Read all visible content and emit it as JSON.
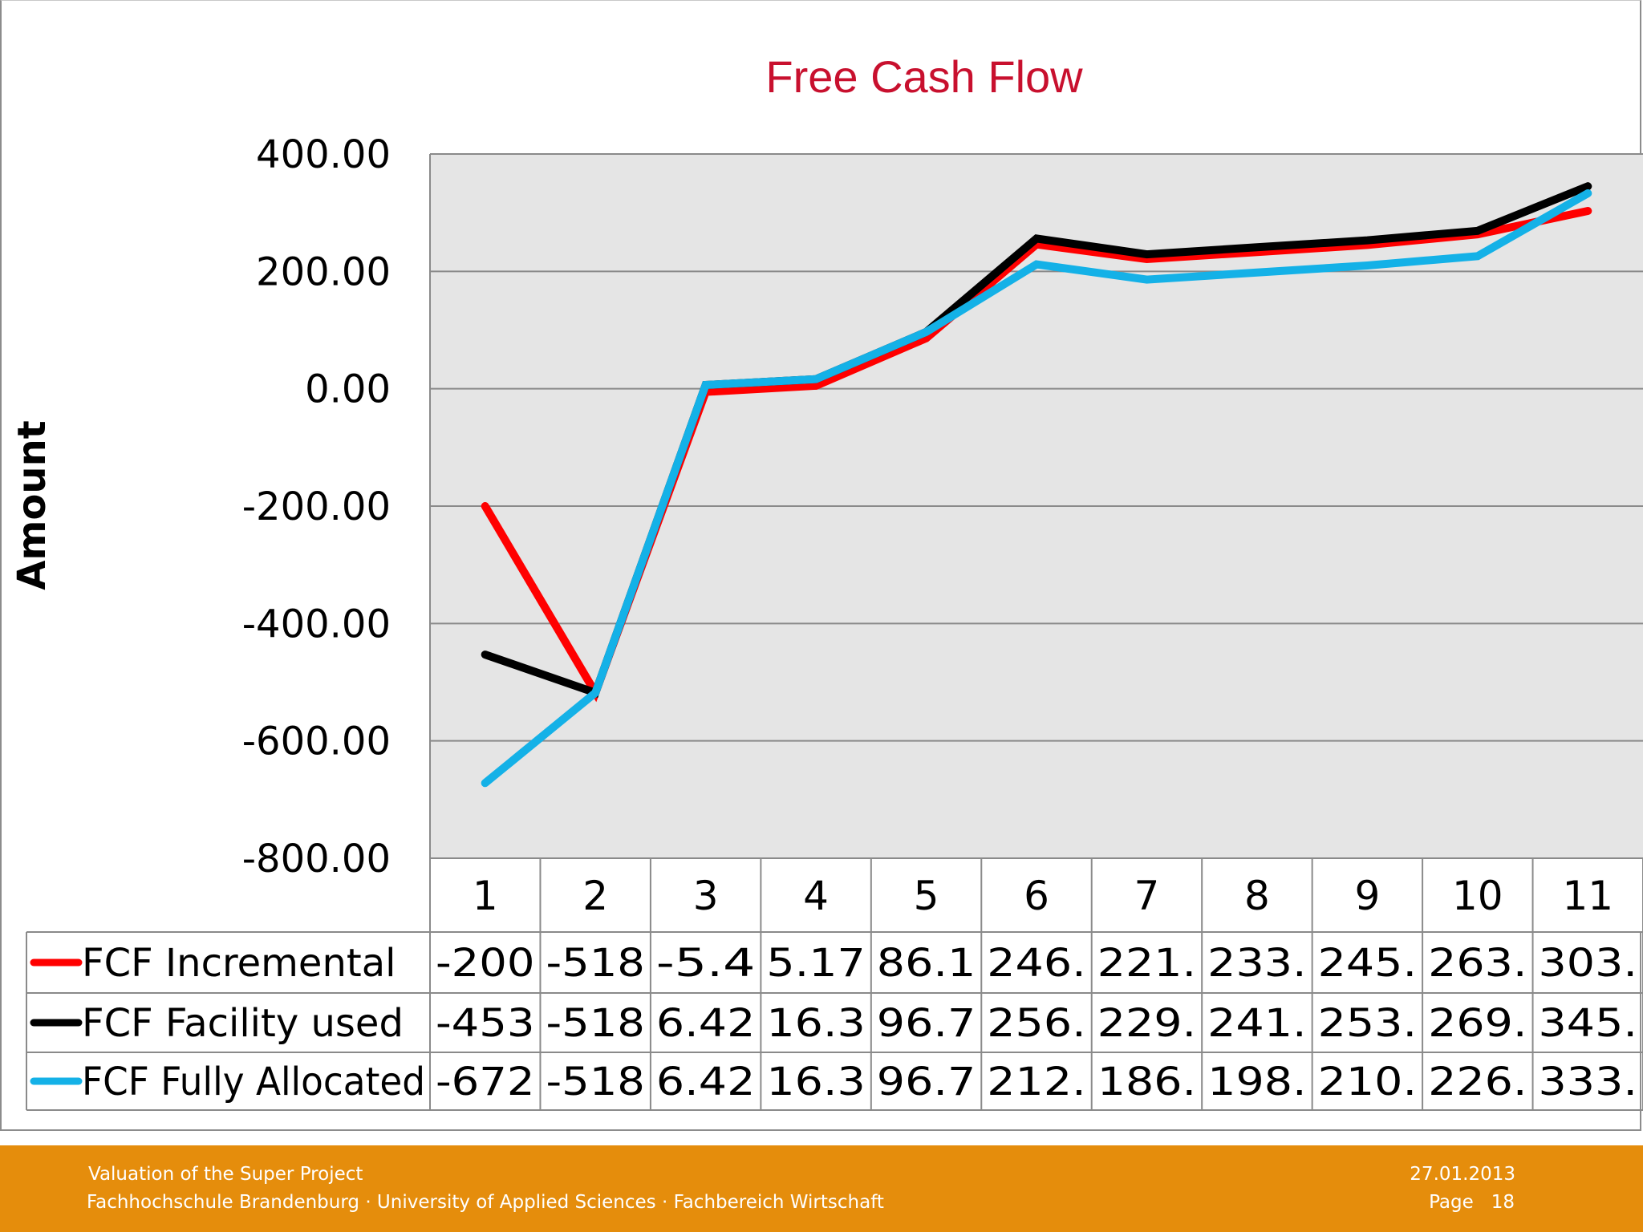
{
  "chart_data": {
    "type": "line",
    "title": "Free Cash Flow",
    "xlabel": "",
    "ylabel": "Amount",
    "ylim": [
      -800,
      400
    ],
    "yticks": [
      "400.00",
      "200.00",
      "0.00",
      "-200.00",
      "-400.00",
      "-600.00",
      "-800.00"
    ],
    "categories": [
      "1",
      "2",
      "3",
      "4",
      "5",
      "6",
      "7",
      "8",
      "9",
      "10",
      "11"
    ],
    "grid": true,
    "legend": "data-table-left",
    "series": [
      {
        "name": "FCF Incremental",
        "color": "#ff0000",
        "values": [
          -200,
          -518,
          -5.4,
          5.17,
          86.1,
          246,
          221,
          233,
          245,
          263,
          303
        ],
        "table_labels": [
          "-200",
          "-518",
          "-5.4",
          "5.17",
          "86.1",
          "246.",
          "221.",
          "233.",
          "245.",
          "263.",
          "303."
        ]
      },
      {
        "name": "FCF Facility used",
        "color": "#000000",
        "values": [
          -453,
          -518,
          6.42,
          16.3,
          96.7,
          256,
          229,
          241,
          253,
          269,
          345
        ],
        "table_labels": [
          "-453",
          "-518",
          "6.42",
          "16.3",
          "96.7",
          "256.",
          "229.",
          "241.",
          "253.",
          "269.",
          "345."
        ]
      },
      {
        "name": "FCF Fully Allocated",
        "color": "#14b1e7",
        "values": [
          -672,
          -518,
          6.42,
          16.3,
          96.7,
          212,
          186,
          198,
          210,
          226,
          333
        ],
        "table_labels": [
          "-672",
          "-518",
          "6.42",
          "16.3",
          "96.7",
          "212.",
          "186.",
          "198.",
          "210.",
          "226.",
          "333."
        ]
      }
    ]
  },
  "footer": {
    "project": "Valuation of the Super Project",
    "institution": "Fachhochschule Brandenburg · University of Applied Sciences · Fachbereich Wirtschaft",
    "date": "27.01.2013",
    "page_label": "Page",
    "page_number": "18"
  },
  "colors": {
    "title": "#c8102e",
    "plot_background": "#e5e5e5",
    "footer_background": "#e58d0c"
  }
}
